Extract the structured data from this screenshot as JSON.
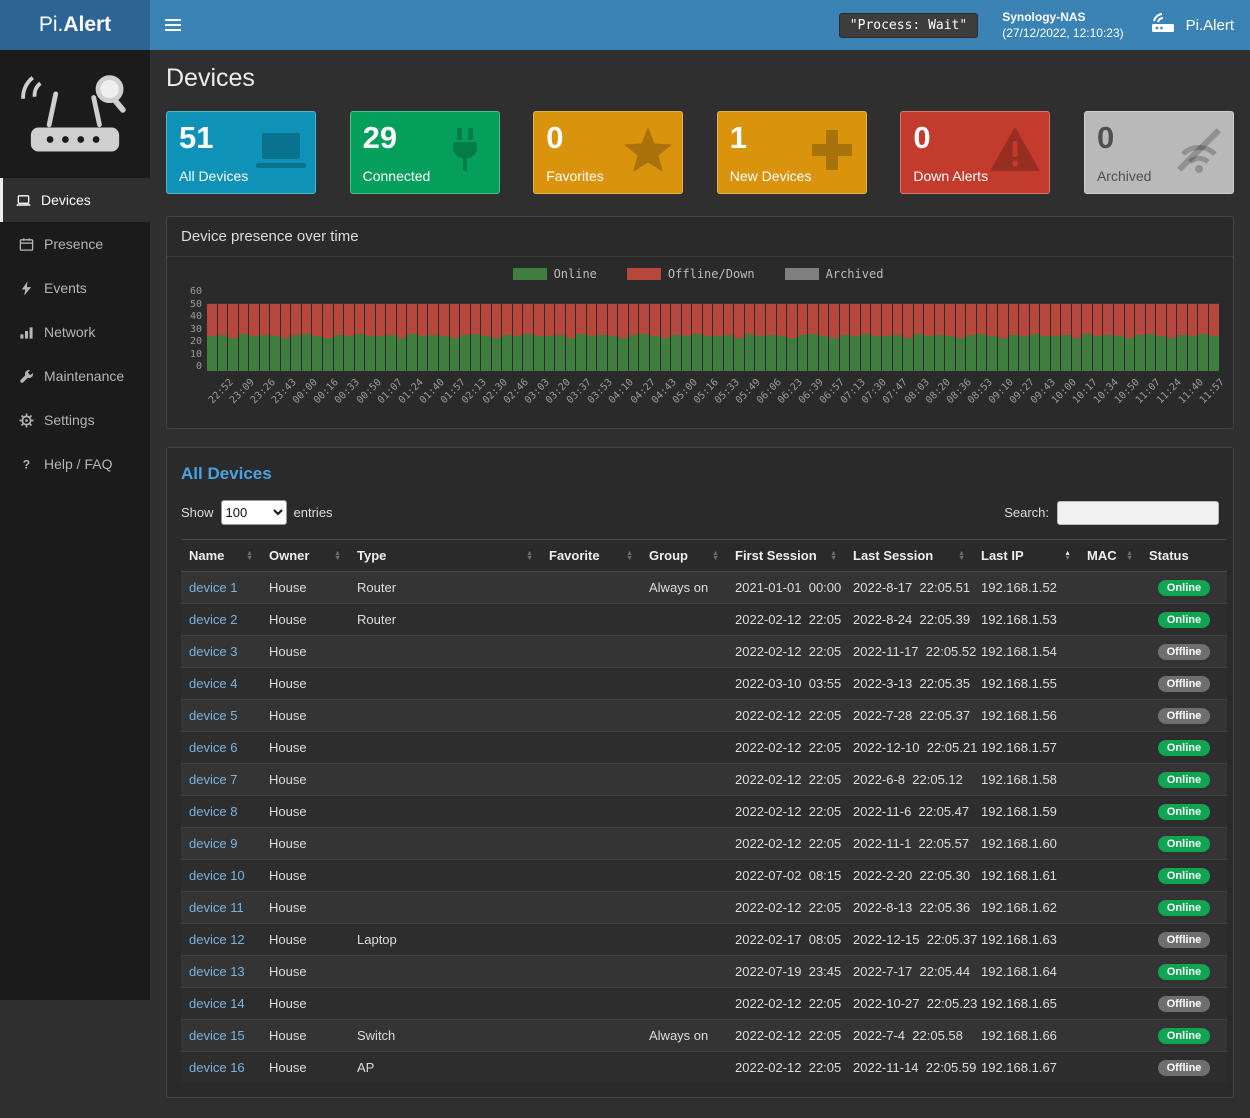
{
  "navbar": {
    "logo_pi": "Pi.",
    "logo_alert": "Alert",
    "process_status": "\"Process: Wait\"",
    "host_name": "Synology-NAS",
    "host_time": "(27/12/2022, 12:10:23)",
    "brand_right": "Pi.Alert"
  },
  "sidebar": {
    "items": [
      {
        "label": "Devices",
        "icon": "laptop-icon",
        "active": true
      },
      {
        "label": "Presence",
        "icon": "calendar-icon",
        "active": false
      },
      {
        "label": "Events",
        "icon": "bolt-icon",
        "active": false
      },
      {
        "label": "Network",
        "icon": "network-icon",
        "active": false
      },
      {
        "label": "Maintenance",
        "icon": "wrench-icon",
        "active": false
      },
      {
        "label": "Settings",
        "icon": "gear-icon",
        "active": false
      },
      {
        "label": "Help / FAQ",
        "icon": "question-icon",
        "active": false
      }
    ]
  },
  "page": {
    "title": "Devices"
  },
  "stats": [
    {
      "value": "51",
      "label": "All Devices",
      "bg": "#0e92b8",
      "text": "#ffffff",
      "icon": "laptop-icon"
    },
    {
      "value": "29",
      "label": "Connected",
      "bg": "#04a05b",
      "text": "#ffffff",
      "icon": "plug-icon"
    },
    {
      "value": "0",
      "label": "Favorites",
      "bg": "#d9930d",
      "text": "#ffffff",
      "icon": "star-icon"
    },
    {
      "value": "1",
      "label": "New Devices",
      "bg": "#d9930d",
      "text": "#ffffff",
      "icon": "plus-icon"
    },
    {
      "value": "0",
      "label": "Down Alerts",
      "bg": "#c23b2c",
      "text": "#ffffff",
      "icon": "warning-icon"
    },
    {
      "value": "0",
      "label": "Archived",
      "bg": "#b9b9b9",
      "text": "#4f4f4f",
      "icon": "wifi-slash-icon"
    }
  ],
  "chart_data": {
    "type": "bar",
    "stacked": true,
    "title": "Device presence over time",
    "ylim": [
      0,
      60
    ],
    "ytick_labels": [
      "60",
      "50",
      "40",
      "30",
      "20",
      "10",
      "0"
    ],
    "grid": true,
    "legend_position": "top",
    "x_labels": [
      "22:52",
      "23:09",
      "23:26",
      "23:43",
      "00:00",
      "00:16",
      "00:33",
      "00:50",
      "01:07",
      "01:24",
      "01:40",
      "01:57",
      "02:13",
      "02:30",
      "02:46",
      "03:03",
      "03:20",
      "03:37",
      "03:53",
      "04:10",
      "04:27",
      "04:43",
      "05:00",
      "05:16",
      "05:33",
      "05:49",
      "06:06",
      "06:23",
      "06:39",
      "06:57",
      "07:13",
      "07:30",
      "07:47",
      "08:03",
      "08:20",
      "08:36",
      "08:53",
      "09:10",
      "09:27",
      "09:43",
      "10:00",
      "10:17",
      "10:34",
      "10:50",
      "11:07",
      "11:24",
      "11:40",
      "11:57"
    ],
    "series": [
      {
        "name": "Online",
        "color": "#3f7e3f",
        "values": [
          26,
          27,
          25,
          28,
          26,
          27,
          26,
          25,
          27,
          28,
          26,
          25,
          27,
          26,
          28,
          26,
          26,
          27,
          25,
          28,
          26,
          27,
          26,
          25,
          27,
          28,
          26,
          25,
          27,
          26,
          28,
          26,
          26,
          27,
          25,
          28,
          26,
          27,
          26,
          25,
          27,
          28,
          26,
          25,
          27,
          26,
          28,
          26,
          26,
          27,
          25,
          28,
          26,
          27,
          26,
          25,
          27,
          28,
          26,
          25,
          27,
          26,
          28,
          26,
          26,
          27,
          25,
          28,
          26,
          27,
          26,
          25,
          27,
          28,
          26,
          25,
          27,
          26,
          28,
          26,
          26,
          27,
          25,
          28,
          26,
          27,
          26,
          25,
          27,
          28,
          26,
          25,
          27,
          26,
          28,
          26
        ]
      },
      {
        "name": "Offline/Down",
        "color": "#b5473c",
        "values": [
          24,
          23,
          25,
          22,
          24,
          23,
          24,
          25,
          23,
          22,
          24,
          25,
          23,
          24,
          22,
          24,
          24,
          23,
          25,
          22,
          24,
          23,
          24,
          25,
          23,
          22,
          24,
          25,
          23,
          24,
          22,
          24,
          24,
          23,
          25,
          22,
          24,
          23,
          24,
          25,
          23,
          22,
          24,
          25,
          23,
          24,
          22,
          24,
          24,
          23,
          25,
          22,
          24,
          23,
          24,
          25,
          23,
          22,
          24,
          25,
          23,
          24,
          22,
          24,
          24,
          23,
          25,
          22,
          24,
          23,
          24,
          25,
          23,
          22,
          24,
          25,
          23,
          24,
          22,
          24,
          24,
          23,
          25,
          22,
          24,
          23,
          24,
          25,
          23,
          22,
          24,
          25,
          23,
          24,
          22,
          24
        ]
      },
      {
        "name": "Archived",
        "color": "#808080",
        "values": [
          0,
          0,
          0,
          0,
          0,
          0,
          0,
          0,
          0,
          0,
          0,
          0,
          0,
          0,
          0,
          0,
          0,
          0,
          0,
          0,
          0,
          0,
          0,
          0,
          0,
          0,
          0,
          0,
          0,
          0,
          0,
          0,
          0,
          0,
          0,
          0,
          0,
          0,
          0,
          0,
          0,
          0,
          0,
          0,
          0,
          0,
          0,
          0,
          0,
          0,
          0,
          0,
          0,
          0,
          0,
          0,
          0,
          0,
          0,
          0,
          0,
          0,
          0,
          0,
          0,
          0,
          0,
          0,
          0,
          0,
          0,
          0,
          0,
          0,
          0,
          0,
          0,
          0,
          0,
          0,
          0,
          0,
          0,
          0,
          0,
          0,
          0,
          0,
          0,
          0,
          0,
          0,
          0,
          0,
          0,
          0
        ]
      }
    ]
  },
  "devices_table": {
    "title": "All Devices",
    "show_label": "Show",
    "entries_label": "entries",
    "page_length": "100",
    "search_label": "Search:",
    "columns": [
      "Name",
      "Owner",
      "Type",
      "Favorite",
      "Group",
      "First Session",
      "Last Session",
      "Last IP",
      "MAC",
      "Status"
    ],
    "status_colors": {
      "Online": "#11a452",
      "Offline": "#6f6f6f"
    },
    "rows": [
      {
        "name": "device 1",
        "owner": "House",
        "type": "Router",
        "favorite": "",
        "group": "Always on",
        "first_session": "2021-01-01  00:00",
        "last_session": "2022-8-17  22:05.51",
        "last_ip": "192.168.1.52",
        "mac": "",
        "status": "Online"
      },
      {
        "name": "device 2",
        "owner": "House",
        "type": "Router",
        "favorite": "",
        "group": "",
        "first_session": "2022-02-12  22:05",
        "last_session": "2022-8-24  22:05.39",
        "last_ip": "192.168.1.53",
        "mac": "",
        "status": "Online"
      },
      {
        "name": "device 3",
        "owner": "House",
        "type": "",
        "favorite": "",
        "group": "",
        "first_session": "2022-02-12  22:05",
        "last_session": "2022-11-17  22:05.52",
        "last_ip": "192.168.1.54",
        "mac": "",
        "status": "Offline"
      },
      {
        "name": "device 4",
        "owner": "House",
        "type": "",
        "favorite": "",
        "group": "",
        "first_session": "2022-03-10  03:55",
        "last_session": "2022-3-13  22:05.35",
        "last_ip": "192.168.1.55",
        "mac": "",
        "status": "Offline"
      },
      {
        "name": "device 5",
        "owner": "House",
        "type": "",
        "favorite": "",
        "group": "",
        "first_session": "2022-02-12  22:05",
        "last_session": "2022-7-28  22:05.37",
        "last_ip": "192.168.1.56",
        "mac": "",
        "status": "Offline"
      },
      {
        "name": "device 6",
        "owner": "House",
        "type": "",
        "favorite": "",
        "group": "",
        "first_session": "2022-02-12  22:05",
        "last_session": "2022-12-10  22:05.21",
        "last_ip": "192.168.1.57",
        "mac": "",
        "status": "Online"
      },
      {
        "name": "device 7",
        "owner": "House",
        "type": "",
        "favorite": "",
        "group": "",
        "first_session": "2022-02-12  22:05",
        "last_session": "2022-6-8  22:05.12",
        "last_ip": "192.168.1.58",
        "mac": "",
        "status": "Online"
      },
      {
        "name": "device 8",
        "owner": "House",
        "type": "",
        "favorite": "",
        "group": "",
        "first_session": "2022-02-12  22:05",
        "last_session": "2022-11-6  22:05.47",
        "last_ip": "192.168.1.59",
        "mac": "",
        "status": "Online"
      },
      {
        "name": "device 9",
        "owner": "House",
        "type": "",
        "favorite": "",
        "group": "",
        "first_session": "2022-02-12  22:05",
        "last_session": "2022-11-1  22:05.57",
        "last_ip": "192.168.1.60",
        "mac": "",
        "status": "Online"
      },
      {
        "name": "device 10",
        "owner": "House",
        "type": "",
        "favorite": "",
        "group": "",
        "first_session": "2022-07-02  08:15",
        "last_session": "2022-2-20  22:05.30",
        "last_ip": "192.168.1.61",
        "mac": "",
        "status": "Online"
      },
      {
        "name": "device 11",
        "owner": "House",
        "type": "",
        "favorite": "",
        "group": "",
        "first_session": "2022-02-12  22:05",
        "last_session": "2022-8-13  22:05.36",
        "last_ip": "192.168.1.62",
        "mac": "",
        "status": "Online"
      },
      {
        "name": "device 12",
        "owner": "House",
        "type": "Laptop",
        "favorite": "",
        "group": "",
        "first_session": "2022-02-17  08:05",
        "last_session": "2022-12-15  22:05.37",
        "last_ip": "192.168.1.63",
        "mac": "",
        "status": "Offline"
      },
      {
        "name": "device 13",
        "owner": "House",
        "type": "",
        "favorite": "",
        "group": "",
        "first_session": "2022-07-19  23:45",
        "last_session": "2022-7-17  22:05.44",
        "last_ip": "192.168.1.64",
        "mac": "",
        "status": "Online"
      },
      {
        "name": "device 14",
        "owner": "House",
        "type": "",
        "favorite": "",
        "group": "",
        "first_session": "2022-02-12  22:05",
        "last_session": "2022-10-27  22:05.23",
        "last_ip": "192.168.1.65",
        "mac": "",
        "status": "Offline"
      },
      {
        "name": "device 15",
        "owner": "House",
        "type": "Switch",
        "favorite": "",
        "group": "Always on",
        "first_session": "2022-02-12  22:05",
        "last_session": "2022-7-4  22:05.58",
        "last_ip": "192.168.1.66",
        "mac": "",
        "status": "Online"
      },
      {
        "name": "device 16",
        "owner": "House",
        "type": "AP",
        "favorite": "",
        "group": "",
        "first_session": "2022-02-12  22:05",
        "last_session": "2022-11-14  22:05.59",
        "last_ip": "192.168.1.67",
        "mac": "",
        "status": "Offline"
      }
    ]
  }
}
